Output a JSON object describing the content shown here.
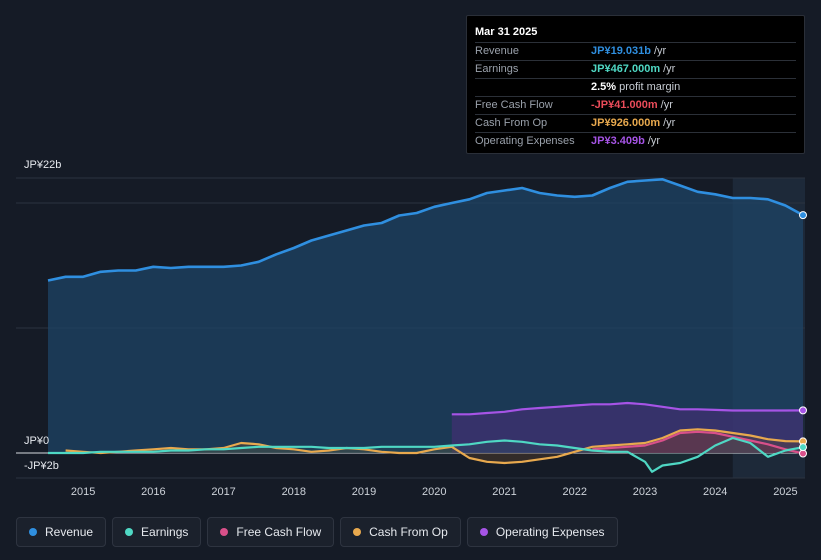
{
  "tooltip": {
    "date": "Mar 31 2025",
    "rows": [
      {
        "label": "Revenue",
        "value": "JP¥19.031b",
        "unit": "/yr",
        "color": "#2f8fe0"
      },
      {
        "label": "Earnings",
        "value": "JP¥467.000m",
        "unit": "/yr",
        "color": "#4fd8c4"
      },
      {
        "label": "",
        "value": "2.5%",
        "unit": "profit margin",
        "color": "#ffffff"
      },
      {
        "label": "Free Cash Flow",
        "value": "-JP¥41.000m",
        "unit": "/yr",
        "color": "#ea4c5a"
      },
      {
        "label": "Cash From Op",
        "value": "JP¥926.000m",
        "unit": "/yr",
        "color": "#e8a94e"
      },
      {
        "label": "Operating Expenses",
        "value": "JP¥3.409b",
        "unit": "/yr",
        "color": "#a654e6"
      }
    ]
  },
  "axis": {
    "top_label": "JP¥22b",
    "zero_label": "JP¥0",
    "bottom_label": "-JP¥2b"
  },
  "legend": [
    {
      "label": "Revenue",
      "color": "#2f8fe0"
    },
    {
      "label": "Earnings",
      "color": "#4fd8c4"
    },
    {
      "label": "Free Cash Flow",
      "color": "#d9508a"
    },
    {
      "label": "Cash From Op",
      "color": "#e8a94e"
    },
    {
      "label": "Operating Expenses",
      "color": "#a654e6"
    }
  ],
  "chart_data": {
    "type": "line",
    "title": "",
    "xlabel": "",
    "ylabel": "",
    "ylim": [
      -2,
      22
    ],
    "x_ticks": [
      "2015",
      "2016",
      "2017",
      "2018",
      "2019",
      "2020",
      "2021",
      "2022",
      "2023",
      "2024",
      "2025"
    ],
    "x_range": [
      2014.5,
      2025.25
    ],
    "highlight_from": 2024.25,
    "series": [
      {
        "name": "Revenue",
        "color": "#2f8fe0",
        "x": [
          2014.5,
          2014.75,
          2015.0,
          2015.25,
          2015.5,
          2015.75,
          2016.0,
          2016.25,
          2016.5,
          2016.75,
          2017.0,
          2017.25,
          2017.5,
          2017.75,
          2018.0,
          2018.25,
          2018.5,
          2018.75,
          2019.0,
          2019.25,
          2019.5,
          2019.75,
          2020.0,
          2020.25,
          2020.5,
          2020.75,
          2021.0,
          2021.25,
          2021.5,
          2021.75,
          2022.0,
          2022.25,
          2022.5,
          2022.75,
          2023.0,
          2023.25,
          2023.5,
          2023.75,
          2024.0,
          2024.25,
          2024.5,
          2024.75,
          2025.0,
          2025.25
        ],
        "values": [
          13.8,
          14.1,
          14.1,
          14.5,
          14.6,
          14.6,
          14.9,
          14.8,
          14.9,
          14.9,
          14.9,
          15.0,
          15.3,
          15.9,
          16.4,
          17.0,
          17.4,
          17.8,
          18.2,
          18.4,
          19.0,
          19.2,
          19.7,
          20.0,
          20.3,
          20.8,
          21.0,
          21.2,
          20.8,
          20.6,
          20.5,
          20.6,
          21.2,
          21.7,
          21.8,
          21.9,
          21.4,
          20.9,
          20.7,
          20.4,
          20.4,
          20.3,
          19.8,
          19.03
        ]
      },
      {
        "name": "Operating Expenses",
        "color": "#a654e6",
        "x": [
          2020.25,
          2020.5,
          2020.75,
          2021.0,
          2021.25,
          2021.5,
          2021.75,
          2022.0,
          2022.25,
          2022.5,
          2022.75,
          2023.0,
          2023.25,
          2023.5,
          2023.75,
          2024.0,
          2024.25,
          2024.5,
          2024.75,
          2025.0,
          2025.25
        ],
        "values": [
          3.1,
          3.1,
          3.2,
          3.3,
          3.5,
          3.6,
          3.7,
          3.8,
          3.9,
          3.9,
          4.0,
          3.9,
          3.7,
          3.5,
          3.5,
          3.45,
          3.4,
          3.4,
          3.4,
          3.4,
          3.409
        ]
      },
      {
        "name": "Cash From Op",
        "color": "#e8a94e",
        "x": [
          2014.75,
          2015.0,
          2015.25,
          2015.5,
          2015.75,
          2016.0,
          2016.25,
          2016.5,
          2016.75,
          2017.0,
          2017.25,
          2017.5,
          2017.75,
          2018.0,
          2018.25,
          2018.5,
          2018.75,
          2019.0,
          2019.25,
          2019.5,
          2019.75,
          2020.0,
          2020.25,
          2020.5,
          2020.75,
          2021.0,
          2021.25,
          2021.5,
          2021.75,
          2022.0,
          2022.25,
          2022.5,
          2022.75,
          2023.0,
          2023.25,
          2023.5,
          2023.75,
          2024.0,
          2024.25,
          2024.5,
          2024.75,
          2025.0,
          2025.25
        ],
        "values": [
          0.2,
          0.1,
          0.0,
          0.1,
          0.2,
          0.3,
          0.4,
          0.3,
          0.3,
          0.4,
          0.8,
          0.7,
          0.4,
          0.3,
          0.1,
          0.2,
          0.4,
          0.3,
          0.1,
          0.0,
          0.0,
          0.3,
          0.5,
          -0.4,
          -0.7,
          -0.8,
          -0.7,
          -0.5,
          -0.3,
          0.1,
          0.5,
          0.6,
          0.7,
          0.8,
          1.2,
          1.8,
          1.9,
          1.8,
          1.6,
          1.4,
          1.1,
          0.95,
          0.926
        ]
      },
      {
        "name": "Free Cash Flow",
        "color": "#d9508a",
        "x": [
          2022.25,
          2022.5,
          2022.75,
          2023.0,
          2023.25,
          2023.5,
          2023.75,
          2024.0,
          2024.25,
          2024.5,
          2024.75,
          2025.0,
          2025.25
        ],
        "values": [
          0.3,
          0.4,
          0.5,
          0.6,
          1.0,
          1.6,
          1.7,
          1.6,
          1.3,
          1.0,
          0.7,
          0.3,
          -0.041
        ]
      },
      {
        "name": "Earnings",
        "color": "#4fd8c4",
        "x": [
          2014.5,
          2014.75,
          2015.0,
          2015.25,
          2015.5,
          2015.75,
          2016.0,
          2016.25,
          2016.5,
          2016.75,
          2017.0,
          2017.25,
          2017.5,
          2017.75,
          2018.0,
          2018.25,
          2018.5,
          2018.75,
          2019.0,
          2019.25,
          2019.5,
          2019.75,
          2020.0,
          2020.25,
          2020.5,
          2020.75,
          2021.0,
          2021.25,
          2021.5,
          2021.75,
          2022.0,
          2022.25,
          2022.5,
          2022.75,
          2023.0,
          2023.1,
          2023.25,
          2023.5,
          2023.75,
          2024.0,
          2024.25,
          2024.5,
          2024.75,
          2025.0,
          2025.25
        ],
        "values": [
          0.0,
          0.0,
          0.0,
          0.1,
          0.1,
          0.1,
          0.1,
          0.2,
          0.2,
          0.3,
          0.3,
          0.4,
          0.5,
          0.5,
          0.5,
          0.5,
          0.4,
          0.4,
          0.4,
          0.5,
          0.5,
          0.5,
          0.5,
          0.6,
          0.7,
          0.9,
          1.0,
          0.9,
          0.7,
          0.6,
          0.4,
          0.2,
          0.1,
          0.1,
          -0.7,
          -1.5,
          -1.0,
          -0.8,
          -0.3,
          0.6,
          1.2,
          0.8,
          -0.3,
          0.2,
          0.467
        ]
      }
    ]
  }
}
